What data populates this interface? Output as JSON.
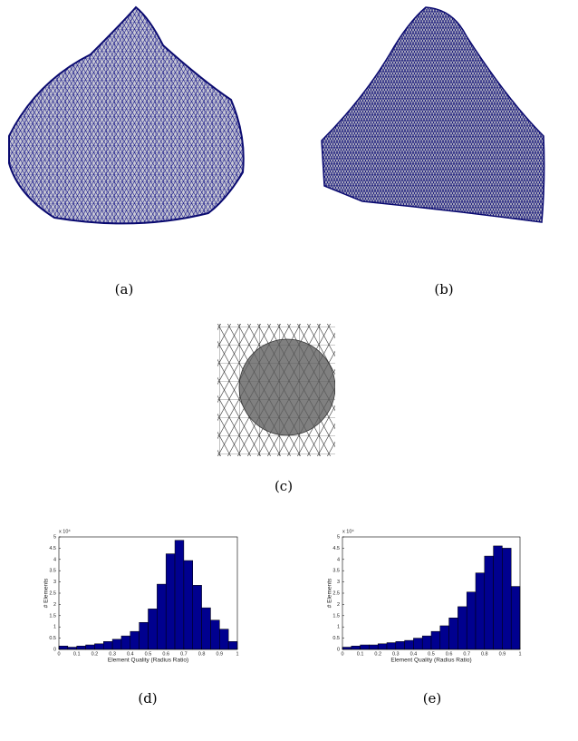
{
  "captions": [
    "(a)",
    "(b)",
    "(c)",
    "(d)",
    "(e)"
  ],
  "chart_data": [
    {
      "type": "histogram",
      "xlabel": "Element Quality (Radius Ratio)",
      "ylabel": "# Elements",
      "y_multiplier": "x 10⁴",
      "bins": [
        0,
        0.05,
        0.1,
        0.15,
        0.2,
        0.25,
        0.3,
        0.35,
        0.4,
        0.45,
        0.5,
        0.55,
        0.6,
        0.65,
        0.7,
        0.75,
        0.8,
        0.85,
        0.9,
        0.95,
        1
      ],
      "values": [
        0.15,
        0.1,
        0.15,
        0.2,
        0.25,
        0.35,
        0.45,
        0.6,
        0.8,
        1.2,
        1.8,
        2.9,
        4.25,
        4.85,
        3.95,
        2.85,
        1.85,
        1.3,
        0.9,
        0.35
      ],
      "color": "#00008f",
      "xlim": [
        0,
        1
      ],
      "ylim": [
        0,
        5
      ],
      "xticks": [
        0,
        0.1,
        0.2,
        0.3,
        0.4,
        0.5,
        0.6,
        0.7,
        0.8,
        0.9,
        1
      ],
      "yticks": [
        0,
        0.5,
        1,
        1.5,
        2,
        2.5,
        3,
        3.5,
        4,
        4.5,
        5
      ]
    },
    {
      "type": "histogram",
      "xlabel": "Element Quality (Radius Ratio)",
      "ylabel": "# Elements",
      "y_multiplier": "x 10⁴",
      "bins": [
        0,
        0.05,
        0.1,
        0.15,
        0.2,
        0.25,
        0.3,
        0.35,
        0.4,
        0.45,
        0.5,
        0.55,
        0.6,
        0.65,
        0.7,
        0.75,
        0.8,
        0.85,
        0.9,
        0.95,
        1
      ],
      "values": [
        0.1,
        0.15,
        0.2,
        0.2,
        0.25,
        0.3,
        0.35,
        0.4,
        0.5,
        0.6,
        0.8,
        1.05,
        1.4,
        1.9,
        2.55,
        3.4,
        4.15,
        4.6,
        4.5,
        2.8
      ],
      "color": "#00008f",
      "xlim": [
        0,
        1
      ],
      "ylim": [
        0,
        5
      ],
      "xticks": [
        0,
        0.1,
        0.2,
        0.3,
        0.4,
        0.5,
        0.6,
        0.7,
        0.8,
        0.9,
        1
      ],
      "yticks": [
        0,
        0.5,
        1,
        1.5,
        2,
        2.5,
        3,
        3.5,
        4,
        4.5,
        5
      ]
    }
  ]
}
